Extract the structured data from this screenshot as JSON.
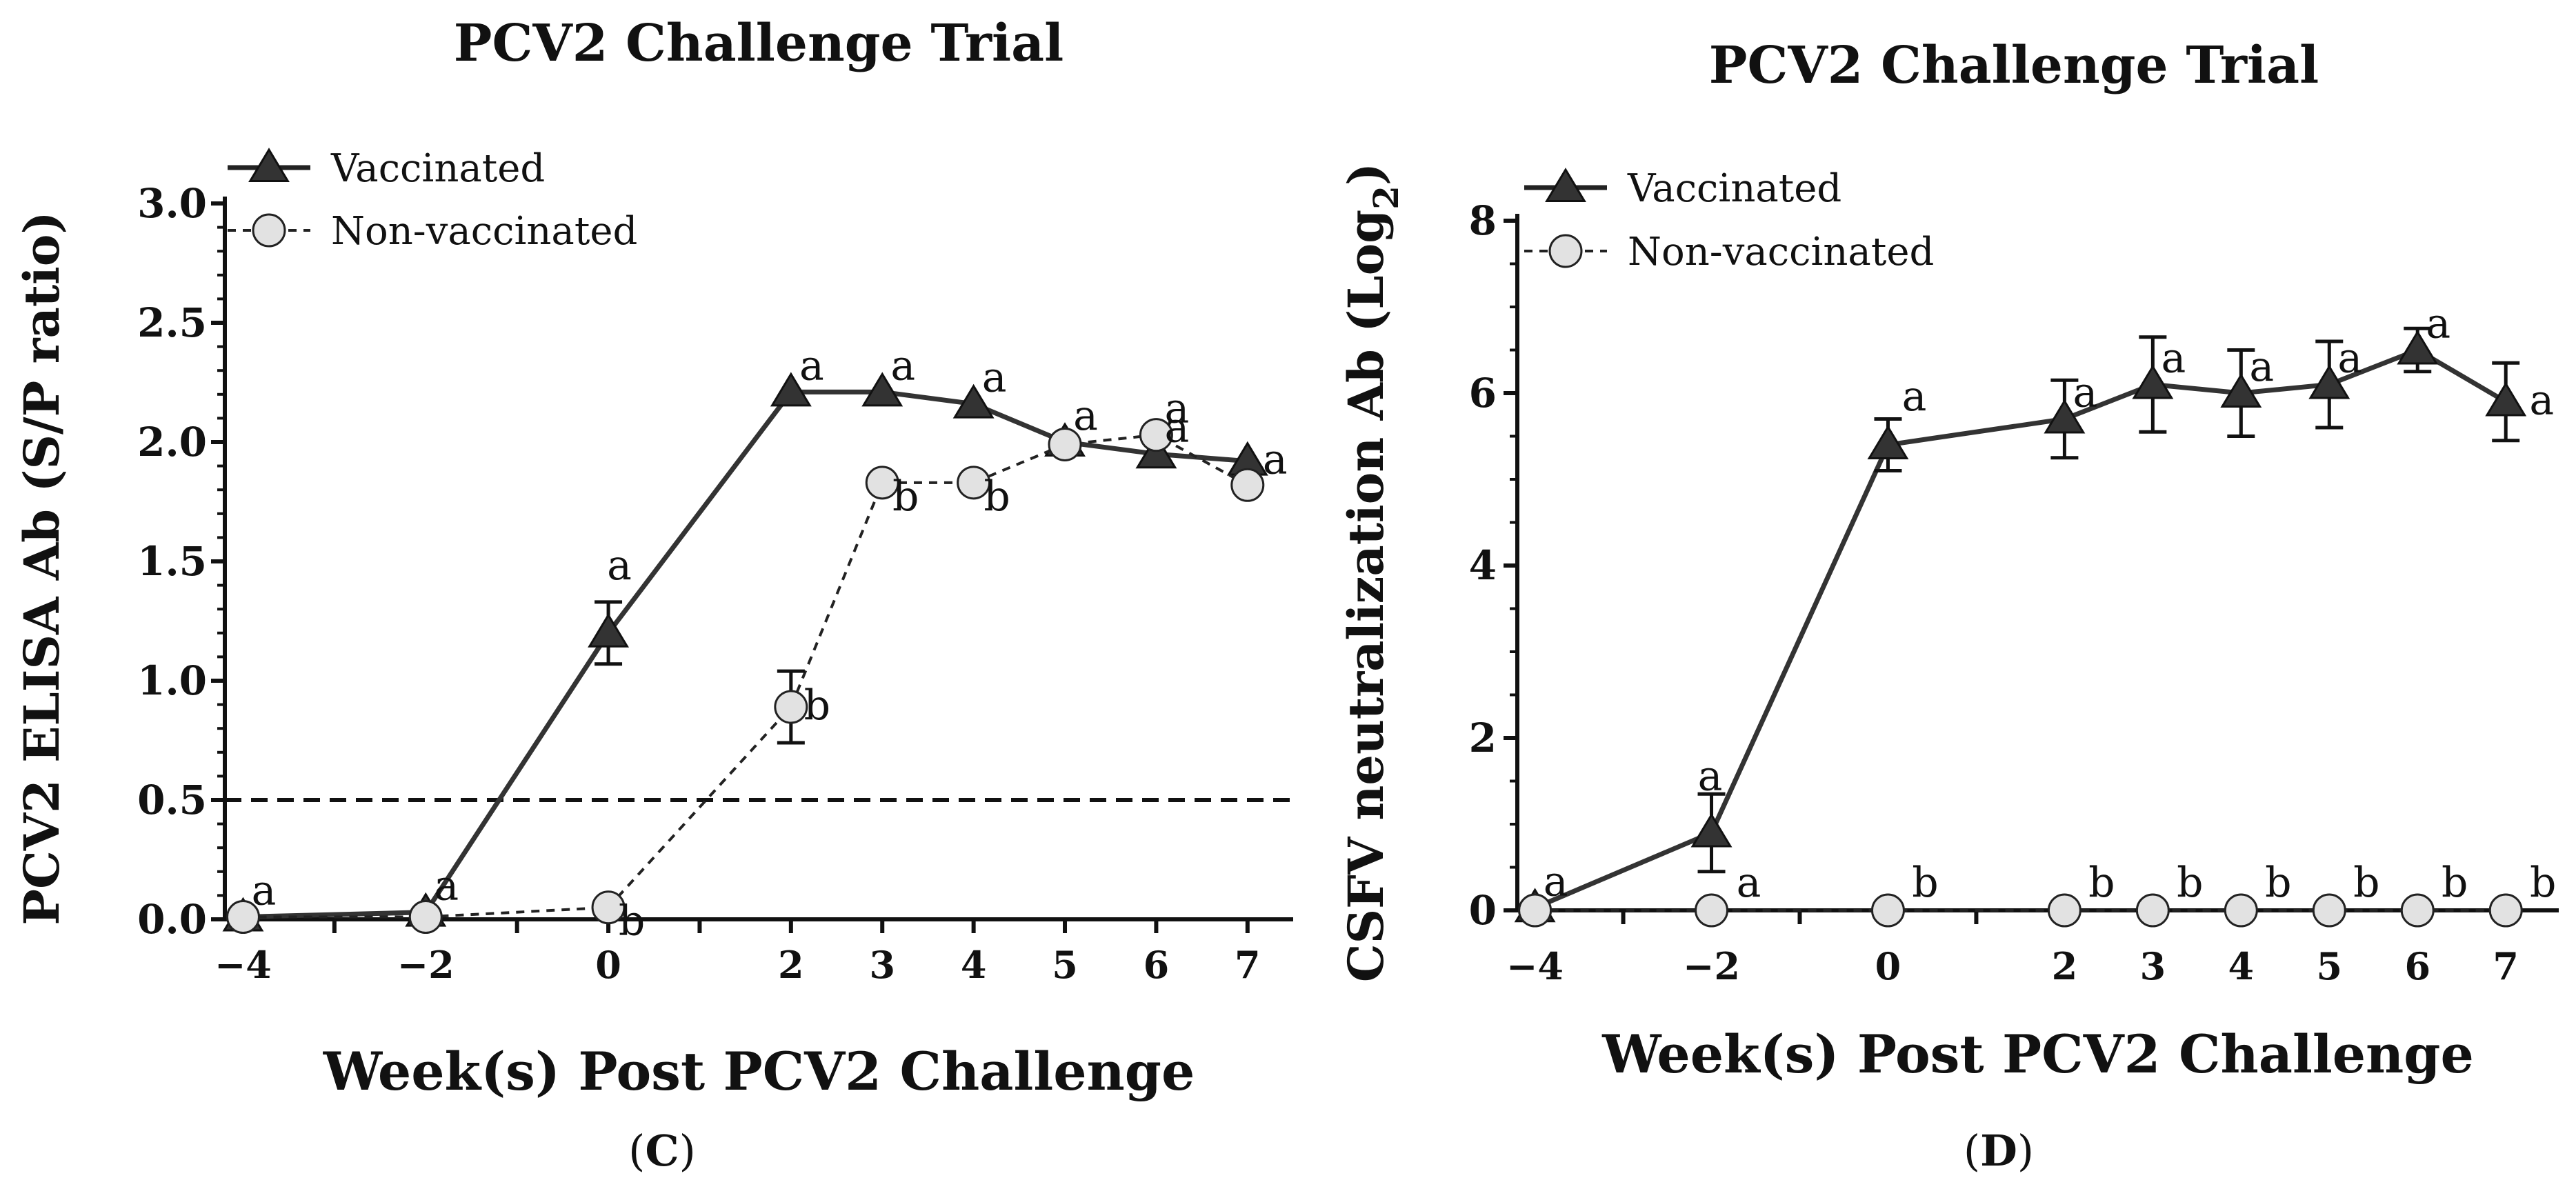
{
  "panels": [
    {
      "panel_label": "(C)",
      "chart_data": {
        "type": "line",
        "title": "PCV2 Challenge Trial",
        "xlabel": "Week(s) Post PCV2 Challenge",
        "ylabel": "PCV2 ELISA Ab (S/P ratio)",
        "x_ticks": [
          -4,
          -2,
          0,
          2,
          3,
          4,
          5,
          6,
          7
        ],
        "x_tick_labels": [
          "−4",
          "−2",
          "0",
          "2",
          "3",
          "4",
          "5",
          "6",
          "7"
        ],
        "xlim": [
          -4.2,
          7.5
        ],
        "ylim": [
          0,
          3.0
        ],
        "y_ticks": [
          0,
          0.5,
          1,
          1.5,
          2,
          2.5,
          3
        ],
        "y_tick_labels": [
          "0.0",
          "0.5",
          "1.0",
          "1.5",
          "2.0",
          "2.5",
          "3.0"
        ],
        "threshold": 0.5,
        "legend_position": "top-left",
        "series": [
          {
            "name": "Vaccinated",
            "marker": "triangle",
            "line_style": "solid",
            "x": [
              -4,
              -2,
              0,
              2,
              3,
              4,
              5,
              6,
              7
            ],
            "values": [
              0.01,
              0.03,
              1.2,
              2.21,
              2.21,
              2.16,
              2.0,
              1.95,
              1.92
            ],
            "error": [
              0,
              0,
              0.13,
              0,
              0,
              0,
              0,
              0,
              0
            ],
            "letters": [
              "a",
              "a",
              "a",
              "a",
              "a",
              "a",
              "a",
              "a",
              "a"
            ]
          },
          {
            "name": "Non-vaccinated",
            "marker": "circle",
            "line_style": "dashed",
            "x": [
              -4,
              -2,
              0,
              2,
              3,
              4,
              5,
              6,
              7
            ],
            "values": [
              0.01,
              0.01,
              0.05,
              0.89,
              1.83,
              1.83,
              1.99,
              2.03,
              1.82
            ],
            "error": [
              0,
              0,
              0,
              0.15,
              0,
              0,
              0,
              0,
              0
            ],
            "letters": [
              "",
              "",
              "b",
              "b",
              "b",
              "b",
              "",
              "a",
              ""
            ]
          }
        ]
      }
    },
    {
      "panel_label": "(D)",
      "chart_data": {
        "type": "line",
        "title": "PCV2 Challenge Trial",
        "xlabel": "Week(s) Post PCV2 Challenge",
        "ylabel": "CSFV neutralization Ab (Log",
        "ylabel_sub": "2",
        "ylabel_close": ")",
        "x_ticks": [
          -4,
          -2,
          0,
          2,
          3,
          4,
          5,
          6,
          7
        ],
        "x_tick_labels": [
          "−4",
          "−2",
          "0",
          "2",
          "3",
          "4",
          "5",
          "6",
          "7"
        ],
        "xlim": [
          -4.2,
          7.6
        ],
        "ylim": [
          0,
          8
        ],
        "y_ticks": [
          0,
          2,
          4,
          6,
          8
        ],
        "y_tick_labels": [
          "0",
          "2",
          "4",
          "6",
          "8"
        ],
        "legend_position": "top-left",
        "series": [
          {
            "name": "Vaccinated",
            "marker": "triangle",
            "line_style": "solid",
            "x": [
              -4,
              -2,
              0,
              2,
              3,
              4,
              5,
              6,
              7
            ],
            "values": [
              0.03,
              0.9,
              5.4,
              5.7,
              6.1,
              6.0,
              6.1,
              6.5,
              5.9
            ],
            "error": [
              0,
              0.45,
              0.3,
              0.45,
              0.55,
              0.5,
              0.5,
              0.25,
              0.45
            ],
            "letters": [
              "a",
              "a",
              "a",
              "a",
              "a",
              "a",
              "a",
              "a",
              "a"
            ]
          },
          {
            "name": "Non-vaccinated",
            "marker": "circle",
            "line_style": "dashed",
            "x": [
              -4,
              -2,
              0,
              2,
              3,
              4,
              5,
              6,
              7
            ],
            "values": [
              0,
              0,
              0,
              0,
              0,
              0,
              0,
              0,
              0
            ],
            "error": [
              0,
              0,
              0,
              0,
              0,
              0,
              0,
              0,
              0
            ],
            "letters": [
              "",
              "a",
              "b",
              "b",
              "b",
              "b",
              "b",
              "b",
              "b"
            ]
          }
        ]
      }
    }
  ]
}
